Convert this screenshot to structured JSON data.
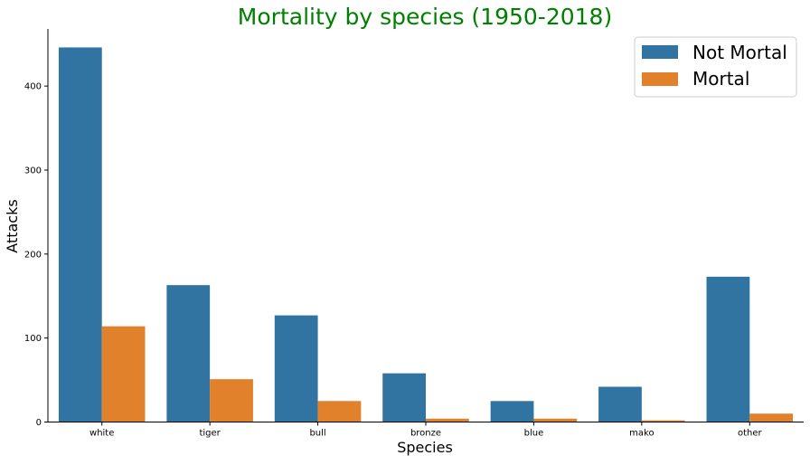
{
  "colors": {
    "not_mortal": "#3274a1",
    "mortal": "#e1812c",
    "title": "#008000",
    "axis": "#000000",
    "legend_border": "#cccccc"
  },
  "chart_data": {
    "type": "bar",
    "title": "Mortality by species (1950-2018)",
    "xlabel": "Species",
    "ylabel": "Attacks",
    "categories": [
      "white",
      "tiger",
      "bull",
      "bronze",
      "blue",
      "mako",
      "other"
    ],
    "series": [
      {
        "name": "Not Mortal",
        "values": [
          446,
          163,
          127,
          58,
          25,
          42,
          173
        ]
      },
      {
        "name": "Mortal",
        "values": [
          114,
          51,
          25,
          4,
          4,
          2,
          10
        ]
      }
    ],
    "ylim": [
      0,
      468
    ],
    "yticks": [
      0,
      100,
      200,
      300,
      400
    ],
    "ytick_labels": [
      "0",
      "100",
      "200",
      "300",
      "400"
    ],
    "grid": false,
    "legend_position": "top-right"
  }
}
